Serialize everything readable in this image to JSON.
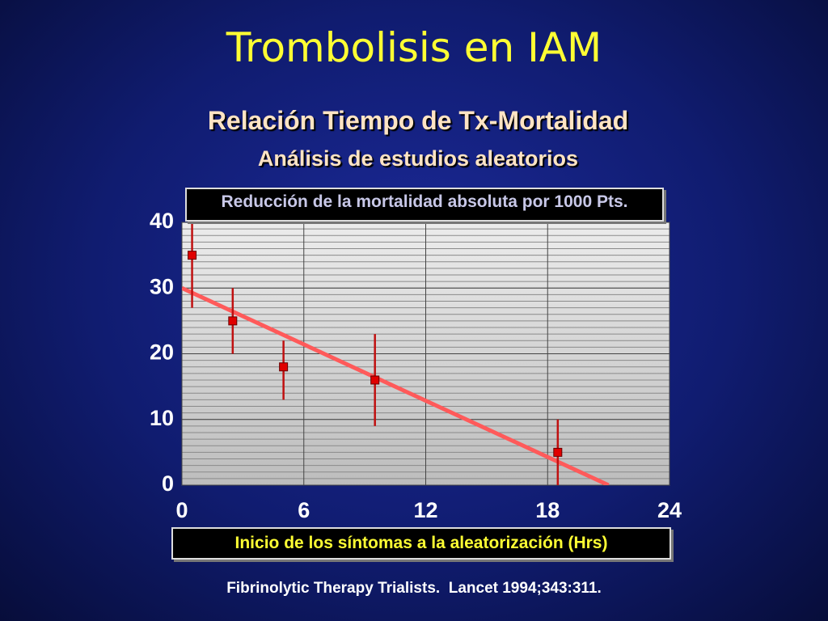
{
  "title": "Trombolisis en IAM",
  "subtitle": "Relación Tiempo de Tx-Mortalidad",
  "subtitle2": "Análisis de estudios aleatorios",
  "source": "Fibrinolytic Therapy Trialists.  Lancet 1994;343:311.",
  "chart_data": {
    "type": "scatter",
    "ylabel": "Reducción de la mortalidad absoluta por 1000 Pts.",
    "xlabel": "Inicio de los síntomas a la aleatorización (Hrs)",
    "x": [
      0.5,
      2.5,
      5,
      9.5,
      18.5
    ],
    "values": [
      35,
      25,
      18,
      16,
      5
    ],
    "lower": [
      27,
      20,
      13,
      9,
      0
    ],
    "upper": [
      40,
      30,
      22,
      23,
      10
    ],
    "color": "#e00000",
    "trend": {
      "x": [
        0,
        21
      ],
      "values": [
        30,
        0
      ],
      "color": "#ff5a5a"
    },
    "xlim": [
      0,
      24
    ],
    "ylim": [
      0,
      40
    ],
    "xticks": [
      0,
      6,
      12,
      18,
      24
    ],
    "yticks": [
      0,
      10,
      20,
      30,
      40
    ],
    "grid": true,
    "minor_grid_step": 1
  }
}
